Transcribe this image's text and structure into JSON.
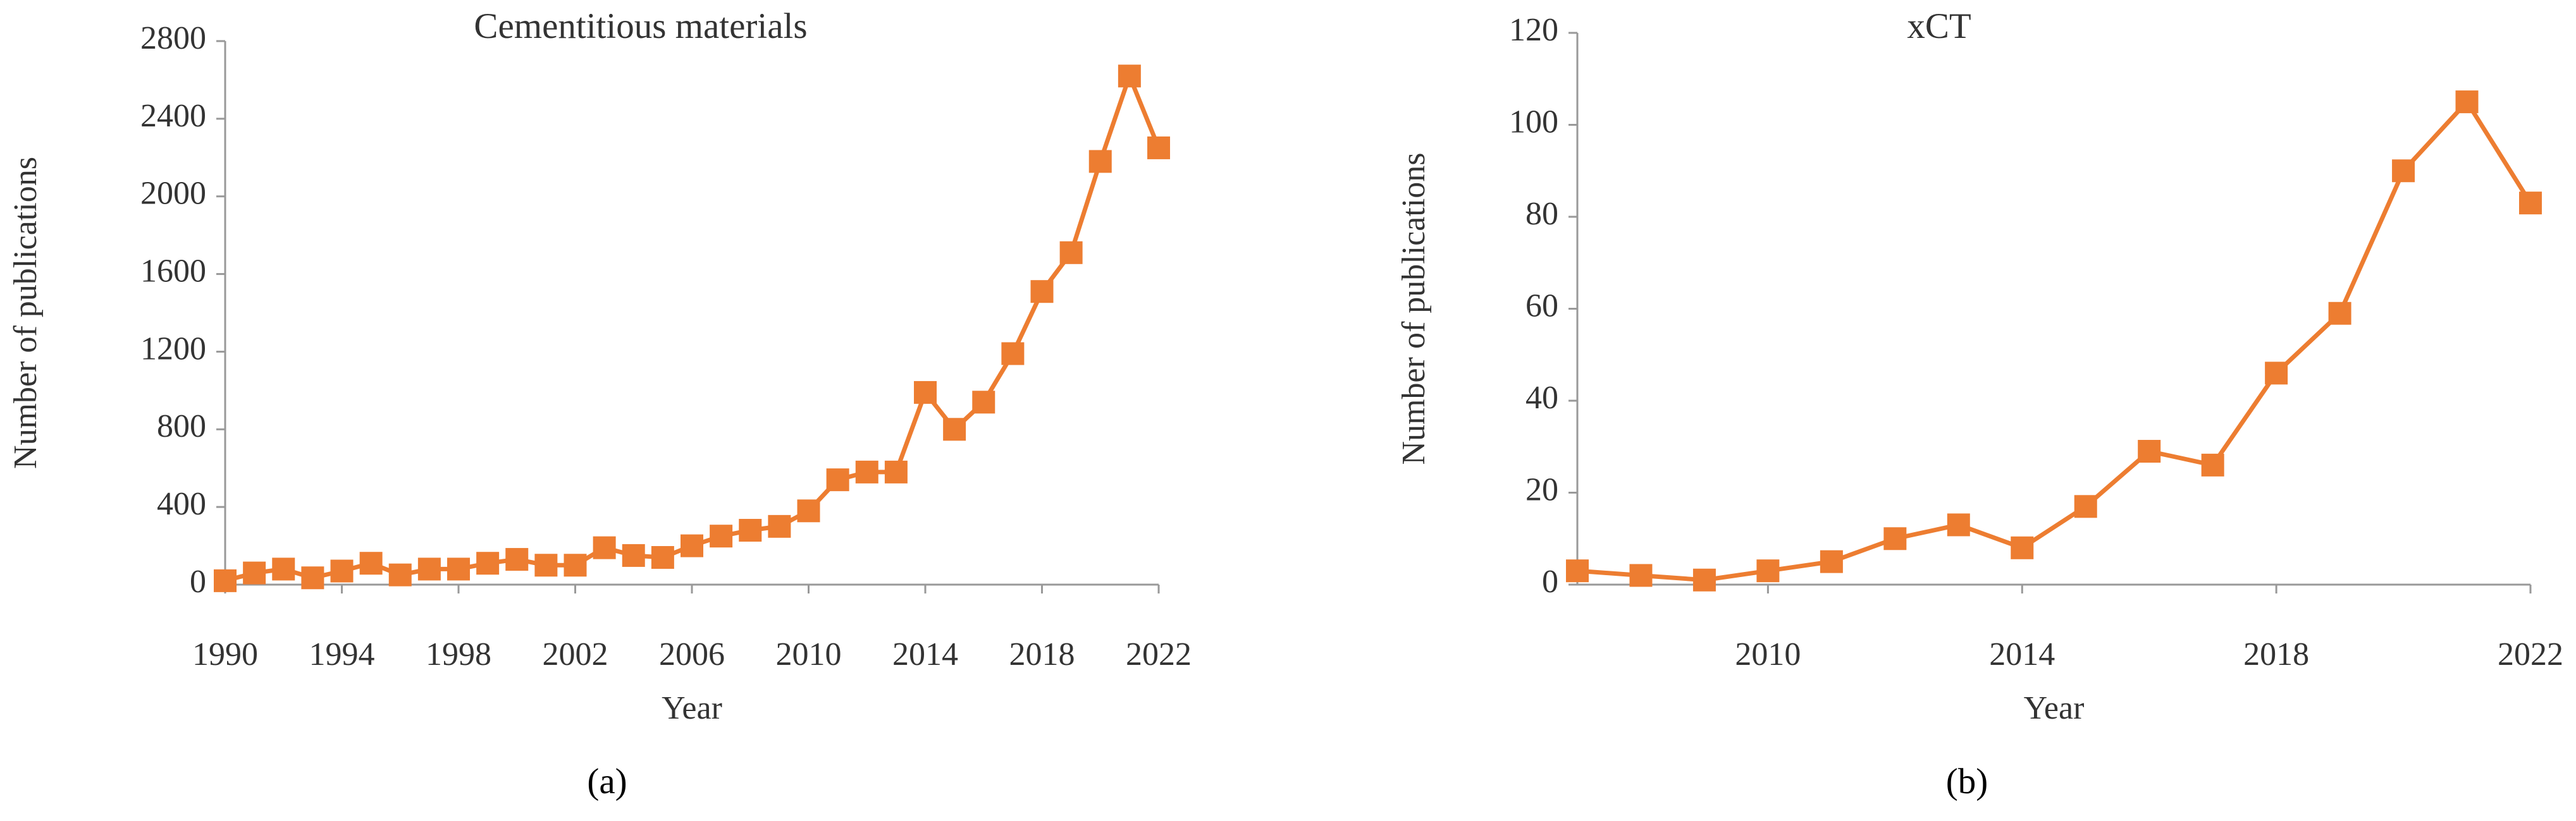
{
  "chart_data": [
    {
      "type": "line",
      "title": "Cementitious materials",
      "x_label": "Year",
      "y_label": "Number of publications",
      "caption": "(a)",
      "x": [
        1990,
        1991,
        1992,
        1993,
        1994,
        1995,
        1996,
        1997,
        1998,
        1999,
        2000,
        2001,
        2002,
        2003,
        2004,
        2005,
        2006,
        2007,
        2008,
        2009,
        2010,
        2011,
        2012,
        2013,
        2014,
        2015,
        2016,
        2017,
        2018,
        2019,
        2020,
        2021,
        2022
      ],
      "values": [
        20,
        60,
        80,
        35,
        70,
        110,
        50,
        80,
        80,
        110,
        130,
        100,
        100,
        190,
        150,
        140,
        200,
        250,
        280,
        300,
        380,
        540,
        580,
        580,
        990,
        800,
        940,
        1190,
        1510,
        1710,
        2180,
        2620,
        2250
      ],
      "color": "#ed7d31",
      "xlim": [
        1990,
        2022
      ],
      "xticks": [
        1990,
        1994,
        1998,
        2002,
        2006,
        2010,
        2014,
        2018,
        2022
      ],
      "ylim": [
        0,
        2800
      ],
      "yticks": [
        0,
        400,
        800,
        1200,
        1600,
        2000,
        2400,
        2800
      ]
    },
    {
      "type": "line",
      "title": "xCT",
      "x_label": "Year",
      "y_label": "Number of publications",
      "caption": "(b)",
      "x": [
        2007,
        2008,
        2009,
        2010,
        2011,
        2012,
        2013,
        2014,
        2015,
        2016,
        2017,
        2018,
        2019,
        2020,
        2021,
        2022
      ],
      "values": [
        3,
        2,
        1,
        3,
        5,
        10,
        13,
        8,
        17,
        29,
        26,
        46,
        59,
        90,
        105,
        83
      ],
      "color": "#ed7d31",
      "xlim": [
        2007,
        2022
      ],
      "xticks": [
        2010,
        2014,
        2018,
        2022
      ],
      "ylim": [
        0,
        120
      ],
      "yticks": [
        0,
        20,
        40,
        60,
        80,
        100,
        120
      ]
    }
  ]
}
